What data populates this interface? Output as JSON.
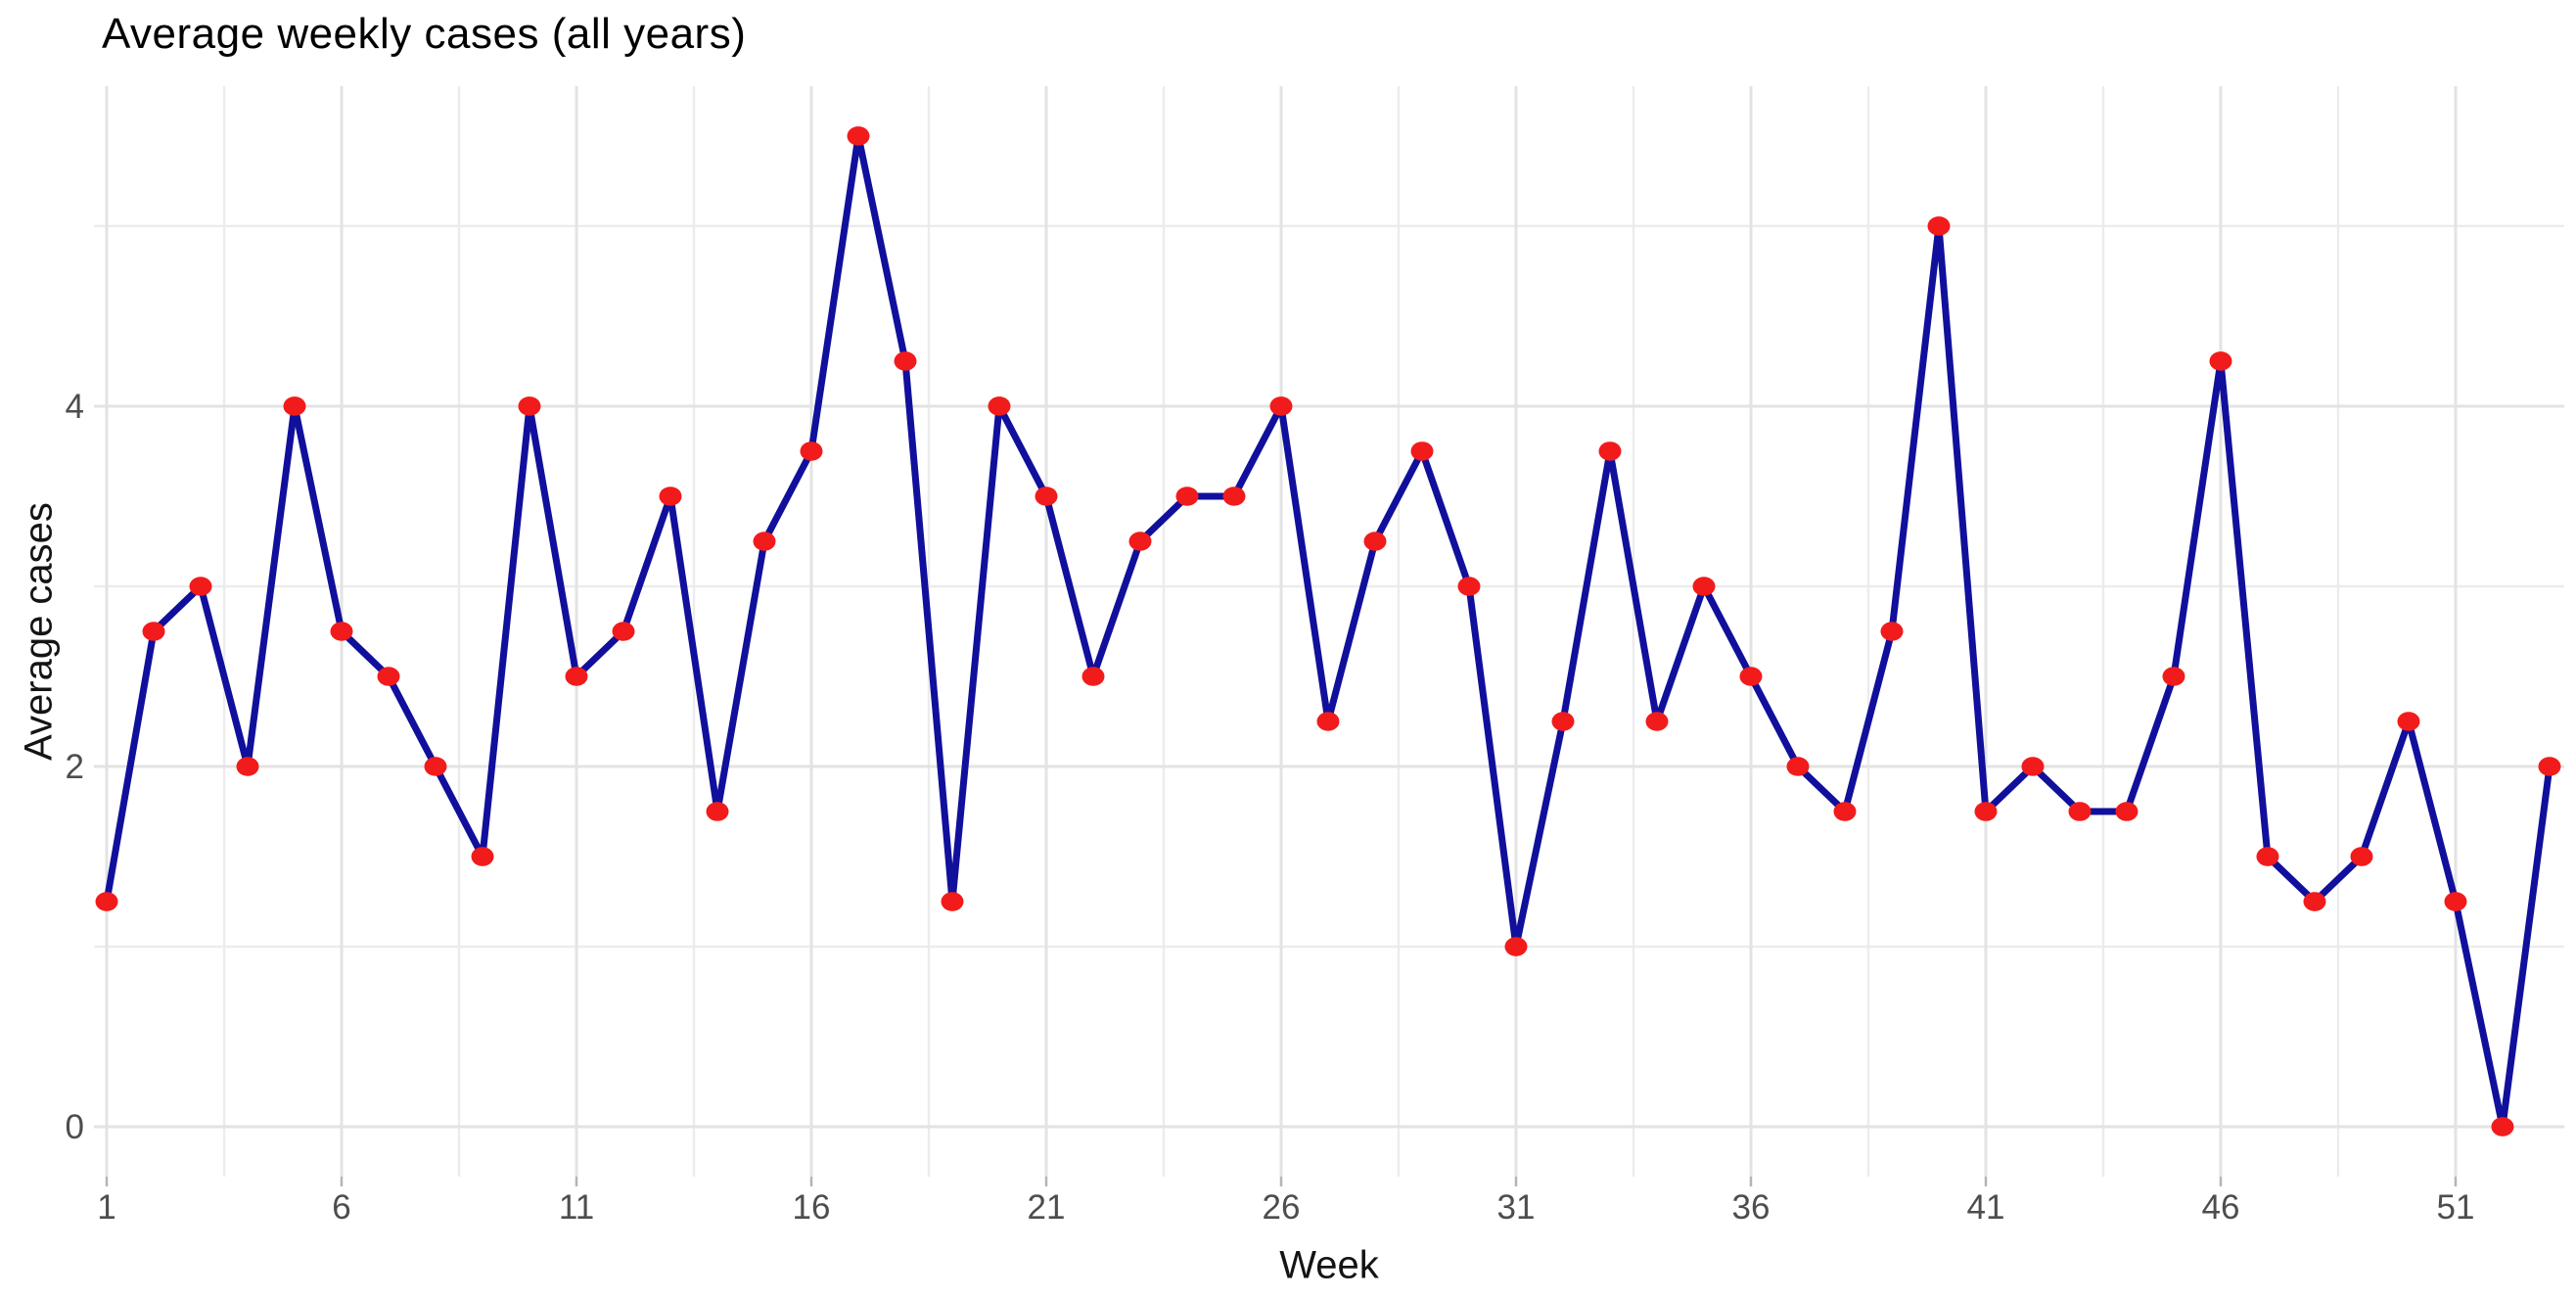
{
  "title": "Average weekly cases (all years)",
  "x_axis": {
    "label": "Week",
    "tick_labels": [
      "1",
      "6",
      "11",
      "16",
      "21",
      "26",
      "31",
      "36",
      "41",
      "46",
      "51"
    ]
  },
  "y_axis": {
    "label": "Average cases",
    "tick_labels": [
      "0",
      "2",
      "4"
    ]
  },
  "chart_data": {
    "type": "line",
    "title": "Average weekly cases (all years)",
    "xlabel": "Week",
    "ylabel": "Average cases",
    "x": [
      1,
      2,
      3,
      4,
      5,
      6,
      7,
      8,
      9,
      10,
      11,
      12,
      13,
      14,
      15,
      16,
      17,
      18,
      19,
      20,
      21,
      22,
      23,
      24,
      25,
      26,
      27,
      28,
      29,
      30,
      31,
      32,
      33,
      34,
      35,
      36,
      37,
      38,
      39,
      40,
      41,
      42,
      43,
      44,
      45,
      46,
      47,
      48,
      49,
      50,
      51,
      52,
      53
    ],
    "series": [
      {
        "name": "average-cases",
        "values": [
          1.25,
          2.75,
          3.0,
          2.0,
          4.0,
          2.75,
          2.5,
          2.0,
          1.5,
          4.0,
          2.5,
          2.75,
          3.5,
          1.75,
          3.25,
          3.75,
          5.5,
          4.25,
          1.25,
          4.0,
          3.5,
          2.5,
          3.25,
          3.5,
          3.5,
          4.0,
          2.25,
          3.25,
          3.75,
          3.0,
          1.0,
          2.25,
          3.75,
          2.25,
          3.0,
          2.5,
          2.0,
          1.75,
          2.75,
          5.0,
          1.75,
          2.0,
          1.75,
          1.75,
          2.5,
          4.25,
          1.5,
          1.25,
          1.5,
          2.25,
          1.25,
          0.0,
          2.0
        ]
      }
    ],
    "x_ticks": [
      1,
      6,
      11,
      16,
      21,
      26,
      31,
      36,
      41,
      46,
      51
    ],
    "y_ticks": [
      0,
      2,
      4
    ],
    "x_minor_gridlines": [
      3.5,
      8.5,
      13.5,
      18.5,
      23.5,
      28.5,
      33.5,
      38.5,
      43.5,
      48.5,
      53.5
    ],
    "y_minor_gridlines": [
      1,
      3,
      5
    ],
    "xlim": [
      0.729,
      53.313
    ],
    "ylim": [
      -0.277,
      5.777
    ],
    "grid": true,
    "legend": false,
    "line_color": "#10109C",
    "point_color": "#F21B1B",
    "major_grid_color": "#E3E3E3",
    "minor_grid_color": "#ECECEC",
    "axis_tick_color": "#B4B4B4",
    "tick_label_color": "#4D4D4D",
    "title_color": "#000000",
    "background": "#FFFFFF"
  }
}
